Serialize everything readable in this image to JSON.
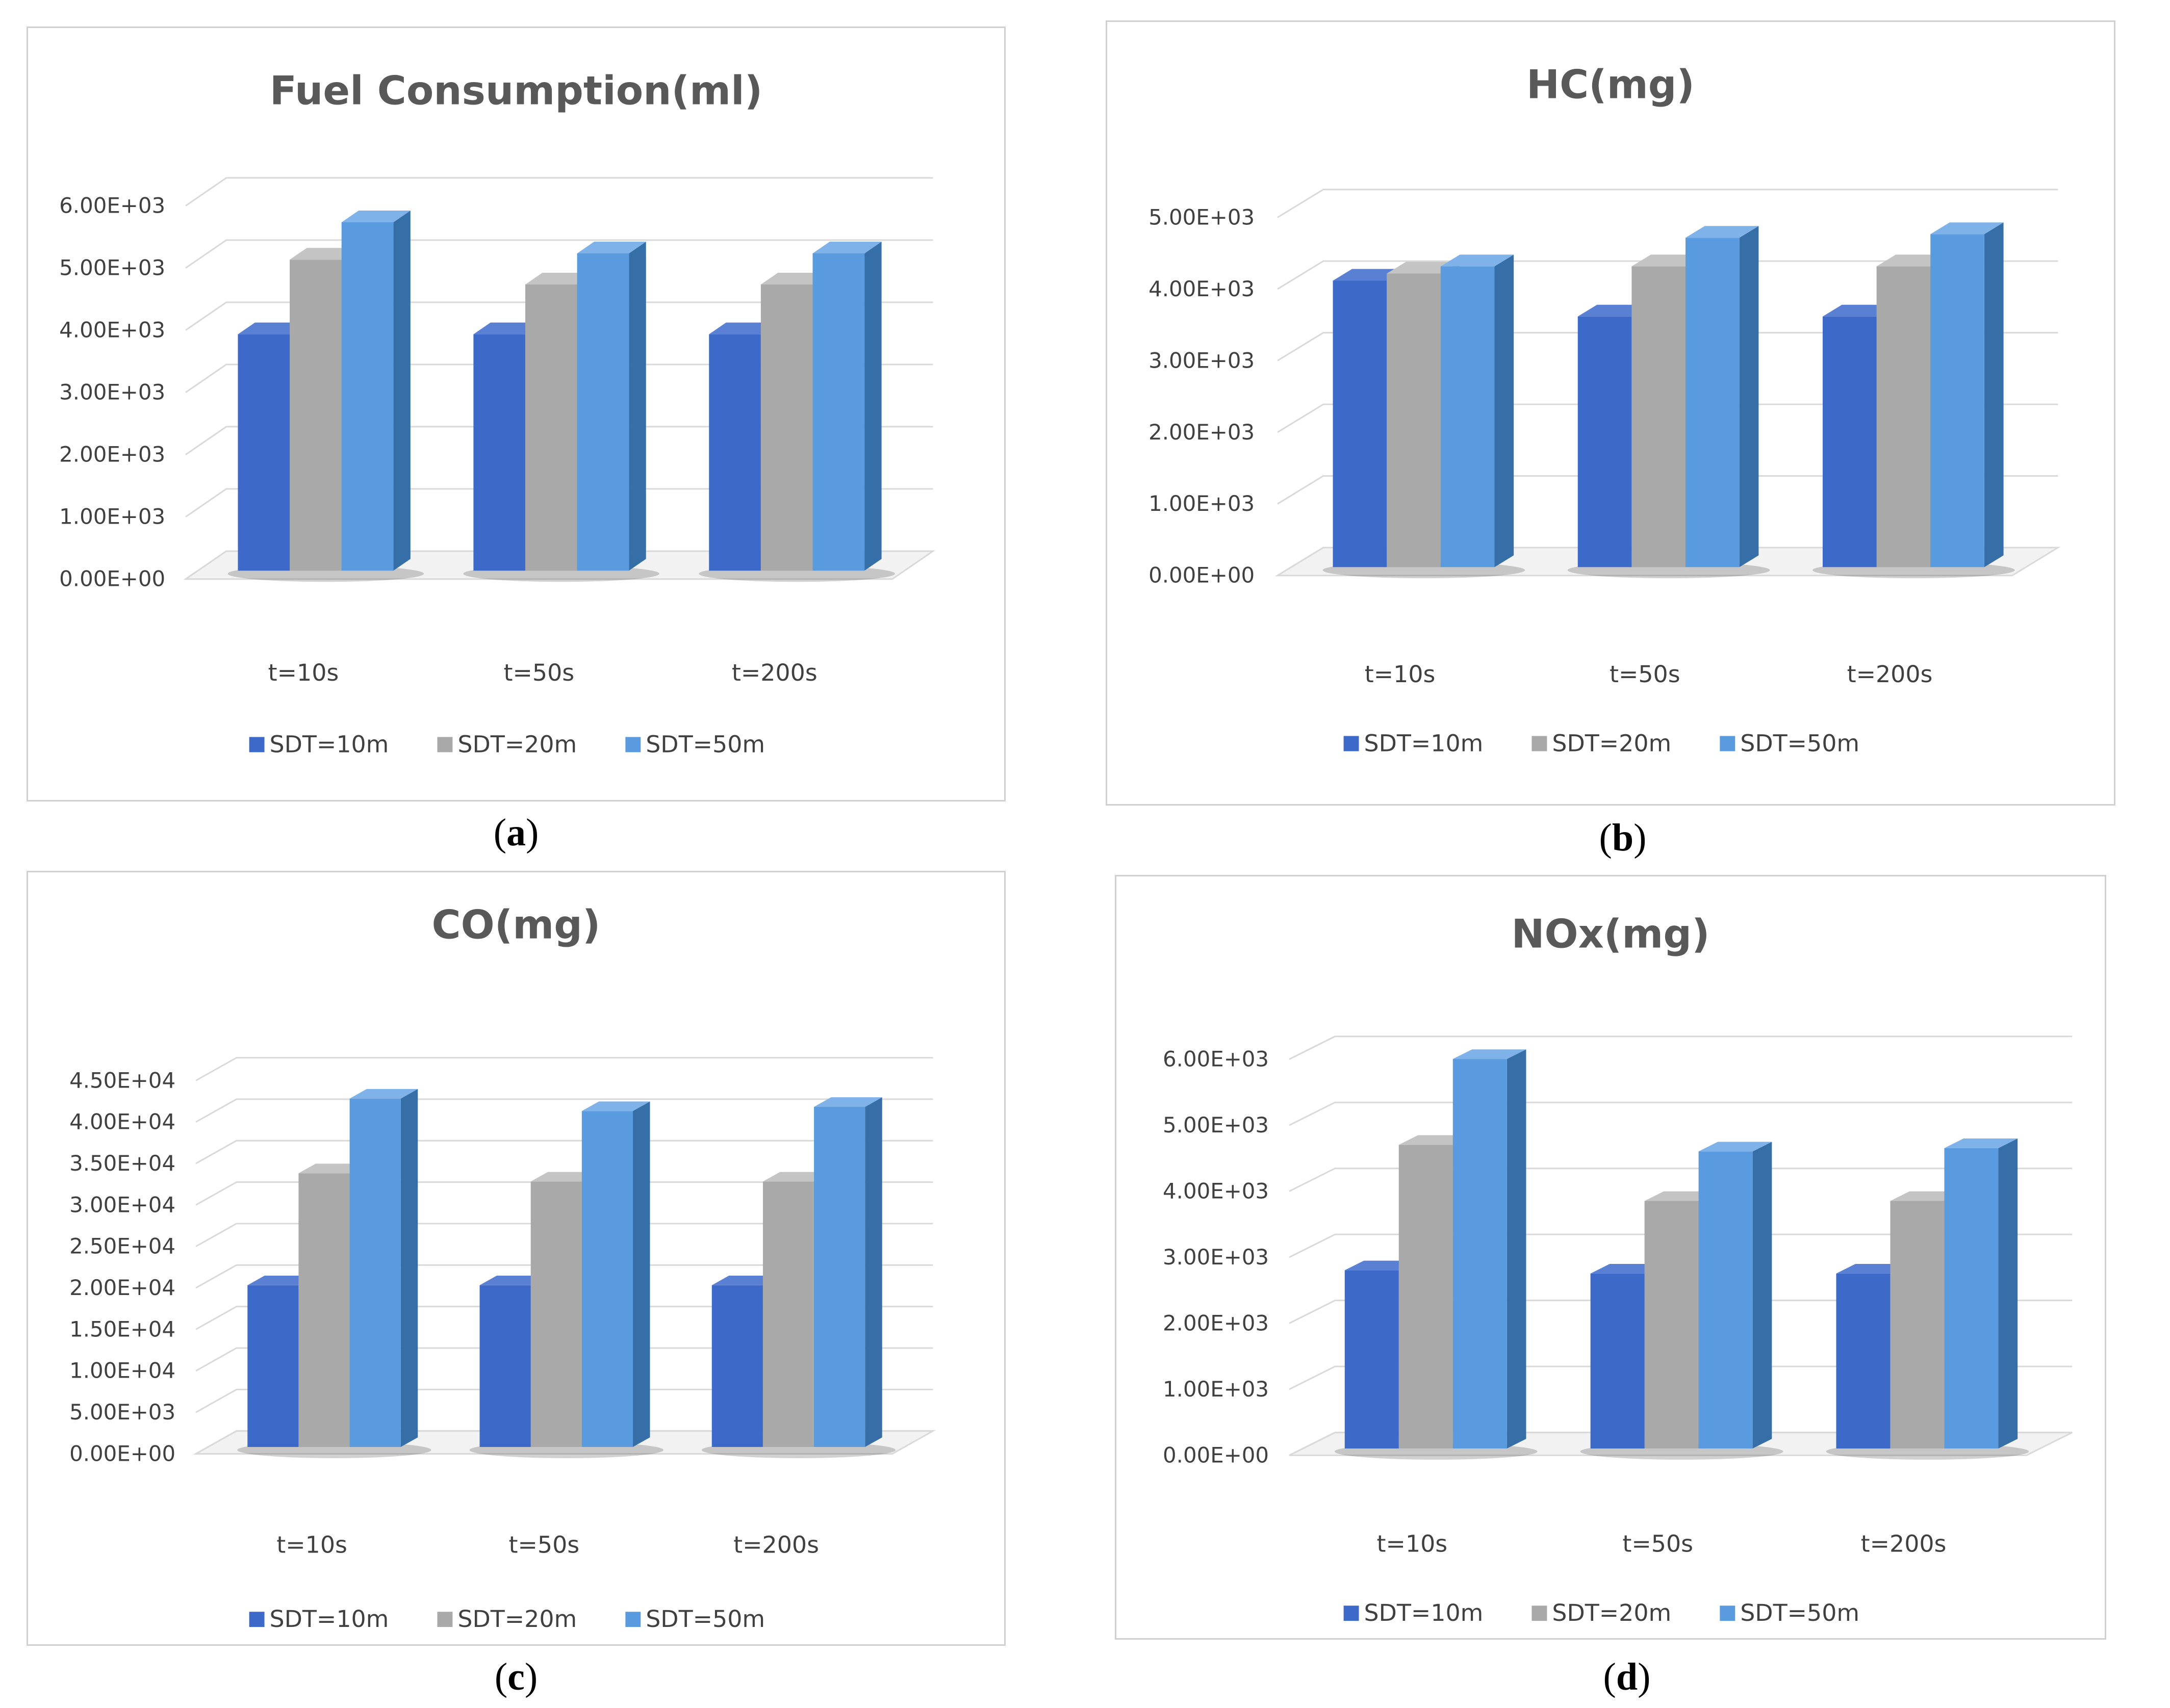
{
  "colors": {
    "sdt10_front": "#3d69c9",
    "sdt10_side": "#2c4d96",
    "sdt10_top": "#5a80d4",
    "sdt20_front": "#a9a9a9",
    "sdt20_side": "#7a7a7a",
    "sdt20_top": "#c4c4c4",
    "sdt50_front": "#5a9be0",
    "sdt50_side": "#366fa8",
    "sdt50_top": "#7fb2e8",
    "grid": "#d9d9d9",
    "text": "#404040",
    "title": "#595959"
  },
  "captions": {
    "a": "a",
    "b": "b",
    "c": "c",
    "d": "d"
  },
  "chart_data": [
    {
      "id": "a",
      "type": "bar",
      "title": "Fuel Consumption(ml)",
      "categories": [
        "t=10s",
        "t=50s",
        "t=200s"
      ],
      "series": [
        {
          "name": "SDT=10m",
          "values": [
            3800,
            3800,
            3800
          ]
        },
        {
          "name": "SDT=20m",
          "values": [
            5000,
            4600,
            4600
          ]
        },
        {
          "name": "SDT=50m",
          "values": [
            5600,
            5100,
            5100
          ]
        }
      ],
      "ylim": [
        0,
        6000
      ],
      "y_ticks": [
        "0.00E+00",
        "1.00E+03",
        "2.00E+03",
        "3.00E+03",
        "4.00E+03",
        "5.00E+03",
        "6.00E+03"
      ],
      "legend_position": "bottom",
      "xlabel": "",
      "ylabel": ""
    },
    {
      "id": "b",
      "type": "bar",
      "title": "HC(mg)",
      "categories": [
        "t=10s",
        "t=50s",
        "t=200s"
      ],
      "series": [
        {
          "name": "SDT=10m",
          "values": [
            4000,
            3500,
            3500
          ]
        },
        {
          "name": "SDT=20m",
          "values": [
            4100,
            4200,
            4200
          ]
        },
        {
          "name": "SDT=50m",
          "values": [
            4200,
            4600,
            4650
          ]
        }
      ],
      "ylim": [
        0,
        5000
      ],
      "y_ticks": [
        "0.00E+00",
        "1.00E+03",
        "2.00E+03",
        "3.00E+03",
        "4.00E+03",
        "5.00E+03"
      ],
      "legend_position": "bottom",
      "xlabel": "",
      "ylabel": ""
    },
    {
      "id": "c",
      "type": "bar",
      "title": "CO(mg)",
      "categories": [
        "t=10s",
        "t=50s",
        "t=200s"
      ],
      "series": [
        {
          "name": "SDT=10m",
          "values": [
            19500,
            19500,
            19500
          ]
        },
        {
          "name": "SDT=20m",
          "values": [
            33000,
            32000,
            32000
          ]
        },
        {
          "name": "SDT=50m",
          "values": [
            42000,
            40500,
            41000
          ]
        }
      ],
      "ylim": [
        0,
        45000
      ],
      "y_ticks": [
        "0.00E+00",
        "5.00E+03",
        "1.00E+04",
        "1.50E+04",
        "2.00E+04",
        "2.50E+04",
        "3.00E+04",
        "3.50E+04",
        "4.00E+04",
        "4.50E+04"
      ],
      "legend_position": "bottom",
      "xlabel": "",
      "ylabel": ""
    },
    {
      "id": "d",
      "type": "bar",
      "title": "NOx(mg)",
      "categories": [
        "t=10s",
        "t=50s",
        "t=200s"
      ],
      "series": [
        {
          "name": "SDT=10m",
          "values": [
            2700,
            2650,
            2650
          ]
        },
        {
          "name": "SDT=20m",
          "values": [
            4600,
            3750,
            3750
          ]
        },
        {
          "name": "SDT=50m",
          "values": [
            5900,
            4500,
            4550
          ]
        }
      ],
      "ylim": [
        0,
        6000
      ],
      "y_ticks": [
        "0.00E+00",
        "1.00E+03",
        "2.00E+03",
        "3.00E+03",
        "4.00E+03",
        "5.00E+03",
        "6.00E+03"
      ],
      "legend_position": "bottom",
      "xlabel": "",
      "ylabel": ""
    }
  ]
}
